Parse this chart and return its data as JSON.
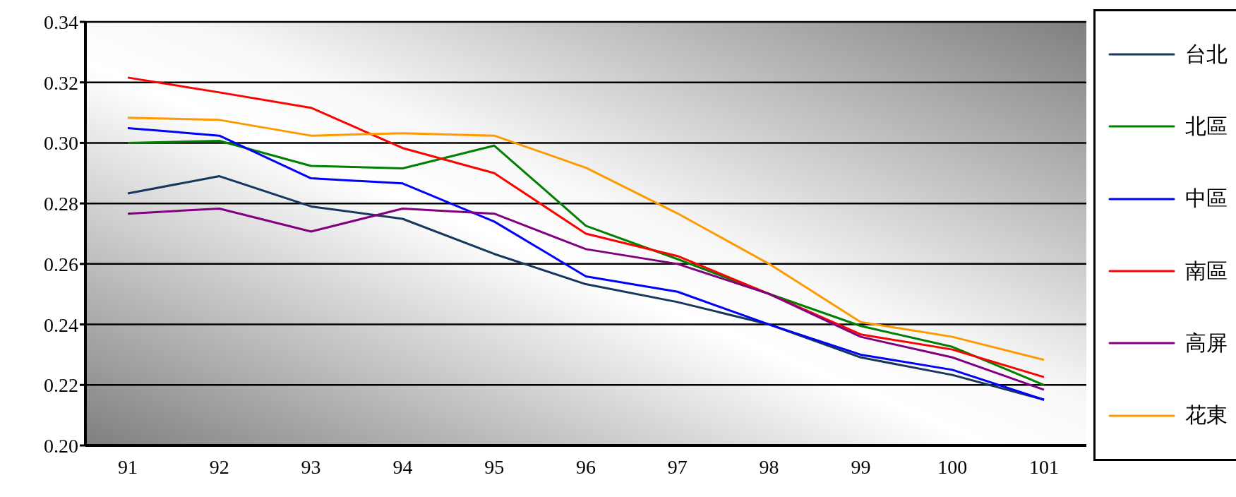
{
  "chart_data": {
    "type": "line",
    "categories": [
      "91",
      "92",
      "93",
      "94",
      "95",
      "96",
      "97",
      "98",
      "99",
      "100",
      "101"
    ],
    "series": [
      {
        "name": "台北",
        "color": "#17375e",
        "values": [
          0.2833,
          0.289,
          0.279,
          0.2749,
          0.2633,
          0.2533,
          0.2474,
          0.24,
          0.2291,
          0.2233,
          0.2151
        ]
      },
      {
        "name": "北區",
        "color": "#008000",
        "values": [
          0.3,
          0.3007,
          0.2924,
          0.2916,
          0.2991,
          0.2726,
          0.2616,
          0.2501,
          0.2395,
          0.2326,
          0.22
        ]
      },
      {
        "name": "中區",
        "color": "#0000ff",
        "values": [
          0.3049,
          0.3024,
          0.2883,
          0.2866,
          0.274,
          0.2559,
          0.2508,
          0.24,
          0.23,
          0.225,
          0.2151
        ]
      },
      {
        "name": "南區",
        "color": "#ff0000",
        "values": [
          0.3216,
          0.3167,
          0.3116,
          0.2983,
          0.29,
          0.27,
          0.2626,
          0.2501,
          0.2367,
          0.2317,
          0.2226
        ]
      },
      {
        "name": "高屏",
        "color": "#800080",
        "values": [
          0.2766,
          0.2783,
          0.2707,
          0.2783,
          0.2766,
          0.2649,
          0.26,
          0.2501,
          0.2359,
          0.2291,
          0.2184
        ]
      },
      {
        "name": "花東",
        "color": "#ff9900",
        "values": [
          0.3083,
          0.3076,
          0.3024,
          0.3032,
          0.3024,
          0.2918,
          0.2767,
          0.26,
          0.2408,
          0.2359,
          0.2283
        ]
      }
    ],
    "ylim": [
      0.2,
      0.34
    ],
    "yticks": [
      {
        "value": 0.2,
        "label": "0.20"
      },
      {
        "value": 0.22,
        "label": "0.22"
      },
      {
        "value": 0.24,
        "label": "0.24"
      },
      {
        "value": 0.26,
        "label": "0.26"
      },
      {
        "value": 0.28,
        "label": "0.28"
      },
      {
        "value": 0.3,
        "label": "0.30"
      },
      {
        "value": 0.32,
        "label": "0.32"
      },
      {
        "value": 0.34,
        "label": "0.34"
      }
    ],
    "grid": "y",
    "legend": "right",
    "marker": "none",
    "line_style": "solid"
  }
}
